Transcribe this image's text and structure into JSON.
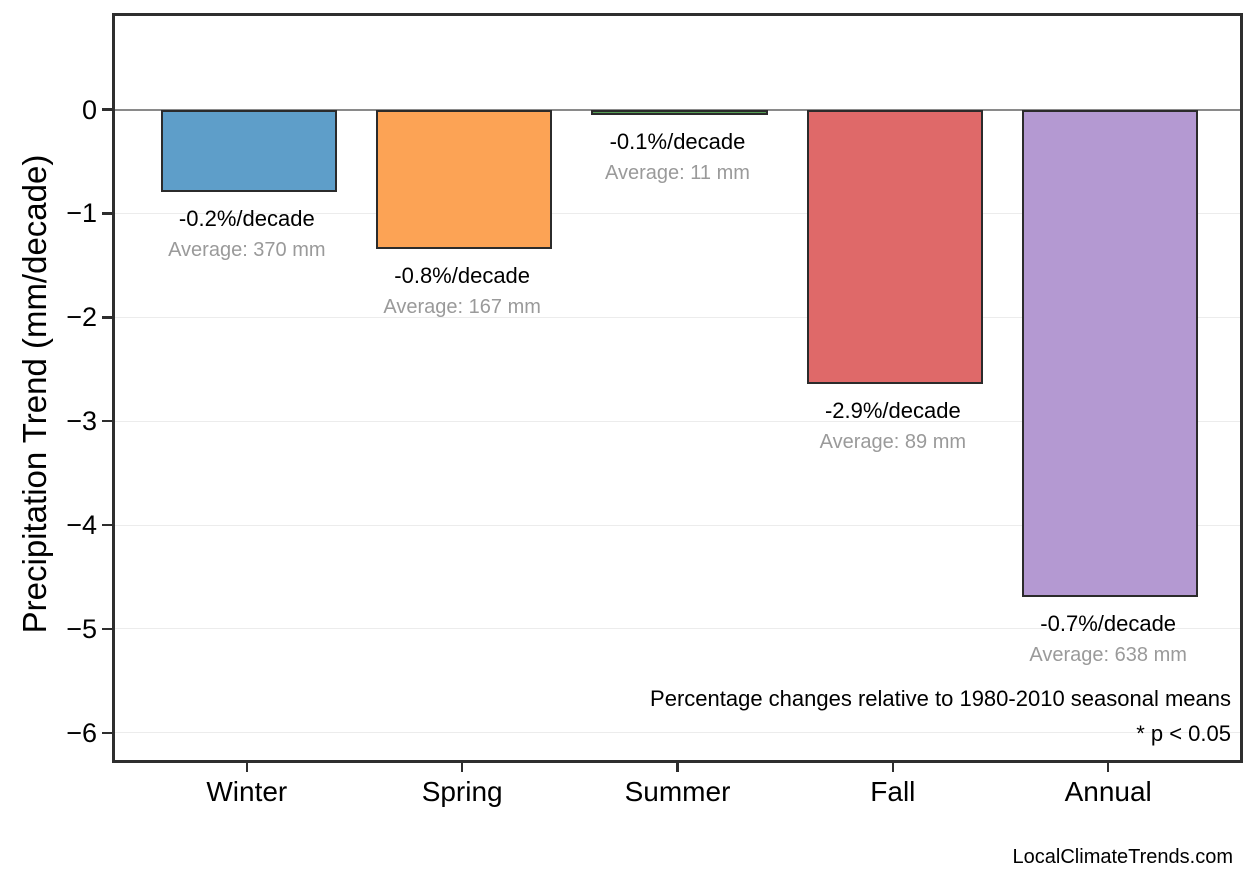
{
  "chart_data": {
    "type": "bar",
    "title": "",
    "categories": [
      "Winter",
      "Spring",
      "Summer",
      "Fall",
      "Annual"
    ],
    "values": [
      -0.75,
      -1.3,
      -0.01,
      -2.6,
      -4.65
    ],
    "pct_per_decade": [
      -0.2,
      -0.8,
      -0.1,
      -2.9,
      -0.7
    ],
    "average_mm": [
      370,
      167,
      11,
      89,
      638
    ],
    "pct_labels": [
      "-0.2%/decade",
      "-0.8%/decade",
      "-0.1%/decade",
      "-2.9%/decade",
      "-0.7%/decade"
    ],
    "avg_labels": [
      "Average: 370 mm",
      "Average: 167 mm",
      "Average: 11 mm",
      "Average: 89 mm",
      "Average: 638 mm"
    ],
    "bar_colors": [
      "#5E9EC9",
      "#FCA355",
      "#55A055",
      "#DF6969",
      "#B499D2"
    ],
    "bar_edge_color": "#2b2b2b",
    "xlabel": "",
    "ylabel": "Precipitation Trend (mm/decade)",
    "ylim": [
      -6.29,
      0.93
    ],
    "yticks": [
      0,
      -1,
      -2,
      -3,
      -4,
      -5,
      -6
    ],
    "ytick_labels": [
      "0",
      "−1",
      "−2",
      "−3",
      "−4",
      "−5",
      "−6"
    ],
    "grid": "horizontal",
    "legend": "none",
    "annotation_line1": "Percentage changes relative to 1980-2010 seasonal means",
    "annotation_line2": "* p < 0.05"
  },
  "footer": {
    "watermark": "LocalClimateTrends.com"
  },
  "colors": {
    "background": "#ffffff",
    "axis_frame": "#2e2e2e",
    "zero_line": "#8a8a8a",
    "gridline": "#ececec",
    "pct_label_text": "#000000",
    "avg_label_text": "#9a9a9a"
  }
}
